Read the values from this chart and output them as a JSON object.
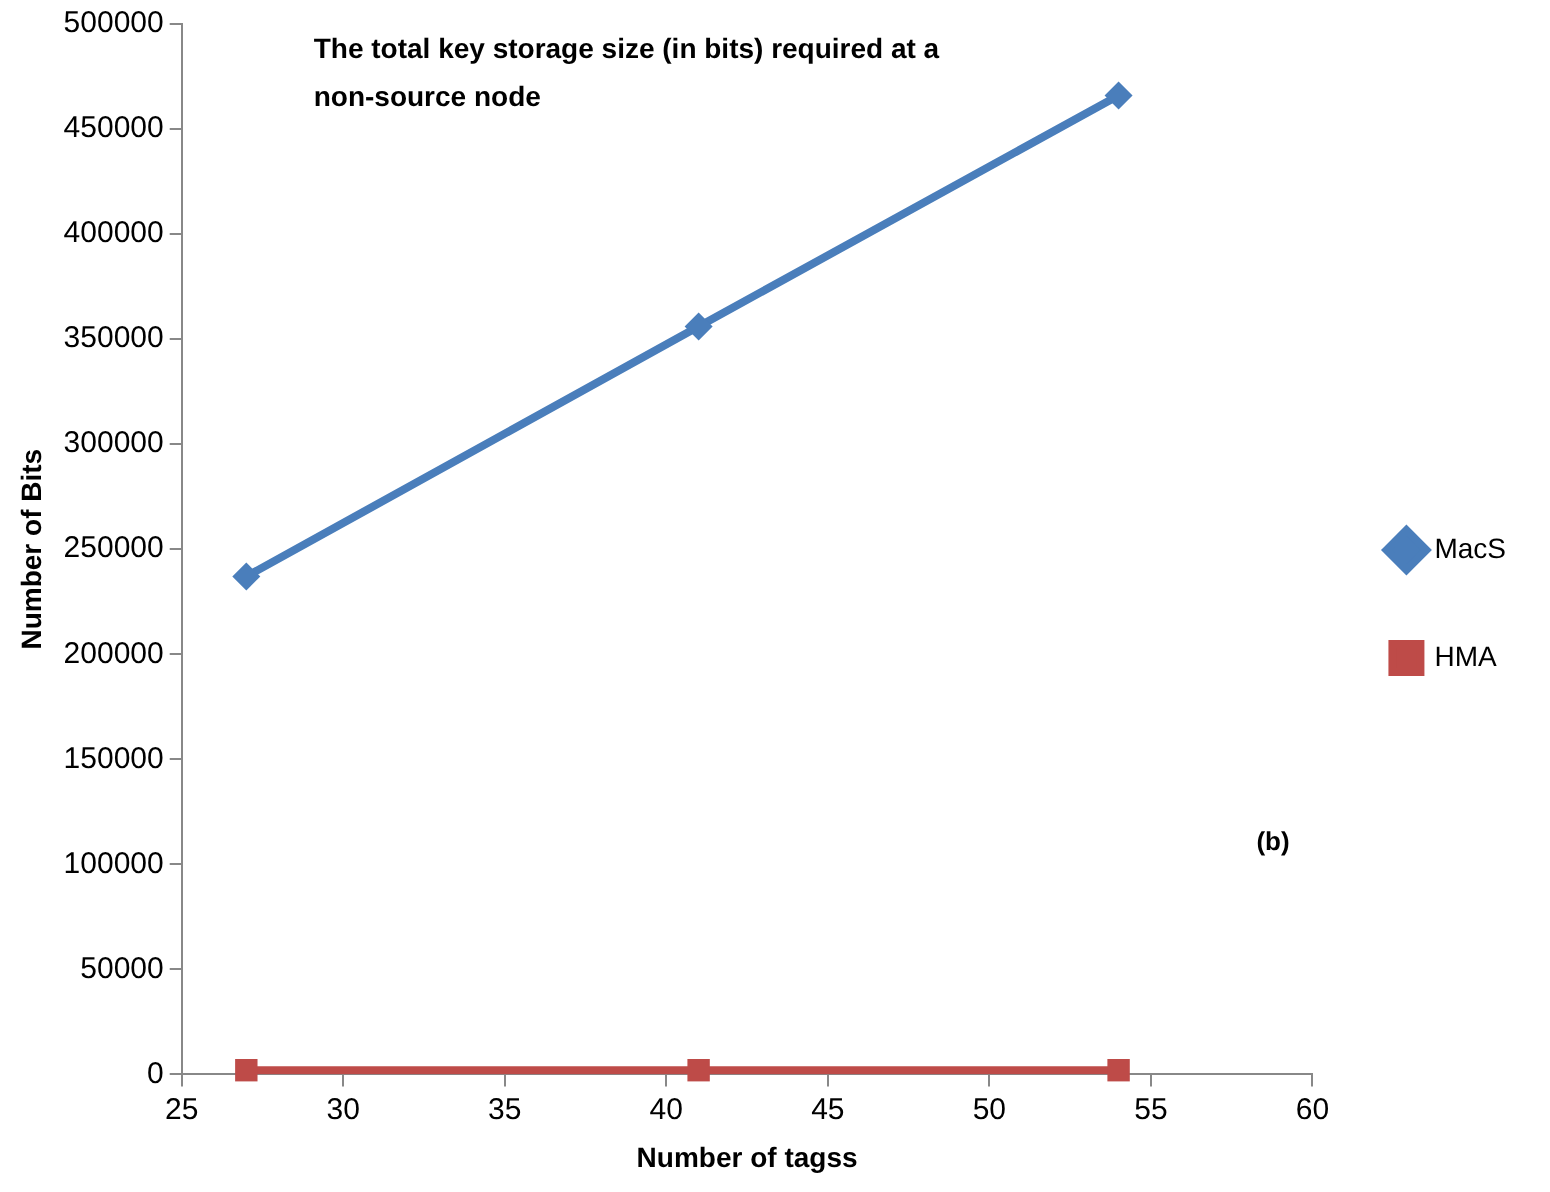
{
  "chart_data": {
    "type": "line",
    "title": "The total key storage size (in bits) required at a non-source node",
    "xlabel": "Number of tagss",
    "ylabel": "Number of Bits",
    "annotations": [
      "(b)"
    ],
    "series": [
      {
        "name": "MacS",
        "color": "#4a7ebb",
        "marker": "diamond",
        "x": [
          27,
          41,
          54
        ],
        "values": [
          237000,
          356000,
          466000
        ]
      },
      {
        "name": "HMA",
        "color": "#be4b48",
        "marker": "square",
        "x": [
          27,
          41,
          54
        ],
        "values": [
          2000,
          2000,
          2000
        ]
      }
    ],
    "xlim": [
      25,
      60
    ],
    "xticks": [
      25,
      30,
      35,
      40,
      45,
      50,
      55,
      60
    ],
    "ylim": [
      0,
      500000
    ],
    "yticks": [
      0,
      50000,
      100000,
      150000,
      200000,
      250000,
      300000,
      350000,
      400000,
      450000,
      500000
    ],
    "grid": false,
    "legend": "right",
    "line_style": "solid"
  }
}
